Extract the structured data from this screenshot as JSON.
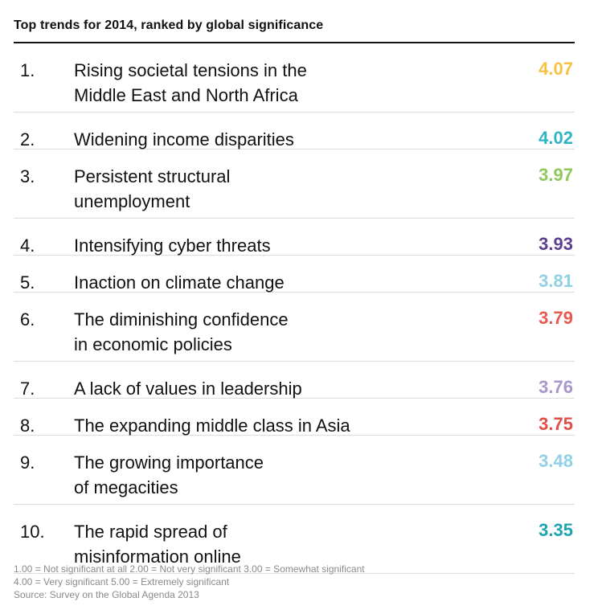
{
  "chart_data": {
    "type": "table",
    "title": "Top trends for 2014, ranked by global significance",
    "rows": [
      {
        "rank": "1.",
        "label": "Rising societal tensions in the\nMiddle East and North Africa",
        "value": 4.07,
        "color": "#f5c242"
      },
      {
        "rank": "2.",
        "label": "Widening income disparities",
        "value": 4.02,
        "color": "#2fb4c4"
      },
      {
        "rank": "3.",
        "label": "Persistent structural\nunemployment",
        "value": 3.97,
        "color": "#8ec85c"
      },
      {
        "rank": "4.",
        "label": "Intensifying cyber threats",
        "value": 3.93,
        "color": "#5f3f8f"
      },
      {
        "rank": "5.",
        "label": "Inaction on climate change",
        "value": 3.81,
        "color": "#8fd0e6"
      },
      {
        "rank": "6.",
        "label": "The diminishing confidence\nin economic policies",
        "value": 3.79,
        "color": "#e85a4f"
      },
      {
        "rank": "7.",
        "label": "A lack of values in leadership",
        "value": 3.76,
        "color": "#a897cc"
      },
      {
        "rank": "8.",
        "label": "The expanding middle class in Asia",
        "value": 3.75,
        "color": "#e04e45"
      },
      {
        "rank": "9.",
        "label": "The growing importance\nof megacities",
        "value": 3.48,
        "color": "#8fd0e6"
      },
      {
        "rank": "10.",
        "label": "The rapid spread of\nmisinformation online",
        "value": 3.35,
        "color": "#1ea3b3"
      }
    ],
    "legend_lines": [
      "1.00 = Not significant at all 2.00 = Not very significant 3.00 = Somewhat significant",
      "4.00 = Very significant 5.00 = Extremely significant"
    ],
    "source": "Source: Survey on the Global Agenda 2013"
  }
}
